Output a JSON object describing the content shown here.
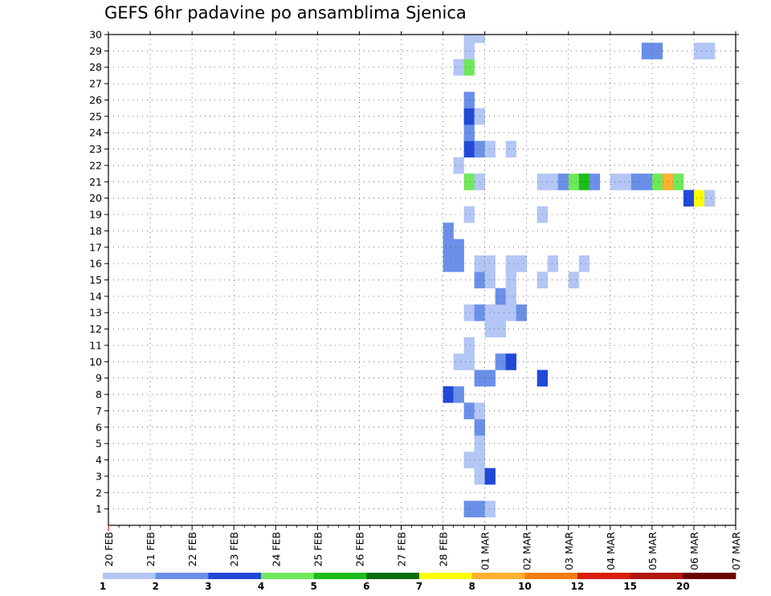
{
  "chart_data": {
    "type": "heatmap",
    "title": "GEFS 6hr padavine po ansamblima Sjenica",
    "y_label": "ensemble member",
    "y_ticks": [
      1,
      2,
      3,
      4,
      5,
      6,
      7,
      8,
      9,
      10,
      11,
      12,
      13,
      14,
      15,
      16,
      17,
      18,
      19,
      20,
      21,
      22,
      23,
      24,
      25,
      26,
      27,
      28,
      29,
      30
    ],
    "x_tick_labels": [
      "20 FEB",
      "21 FEB",
      "22 FEB",
      "23 FEB",
      "24 FEB",
      "25 FEB",
      "26 FEB",
      "27 FEB",
      "28 FEB",
      "01 MAR",
      "02 MAR",
      "03 MAR",
      "04 MAR",
      "05 MAR",
      "06 MAR",
      "07 MAR"
    ],
    "x_steps_per_day": 4,
    "color_scale": {
      "bin_colors": [
        "#b3c6f5",
        "#6b8fe9",
        "#2049d8",
        "#6fe85a",
        "#1bbd1b",
        "#0c6b0c",
        "#ffff00",
        "#ffb02e",
        "#f77d0f",
        "#d81e0a",
        "#b1170c",
        "#6b0303"
      ],
      "tick_labels": [
        "1",
        "2",
        "3",
        "4",
        "5",
        "6",
        "7",
        "8",
        "10",
        "12",
        "15",
        "20"
      ]
    },
    "members": {
      "30": [
        [
          34,
          0
        ],
        [
          35,
          0
        ],
        [
          142,
          2
        ],
        [
          143,
          11
        ],
        [
          144,
          1
        ],
        [
          145,
          0
        ],
        [
          146,
          1
        ],
        [
          147,
          0
        ]
      ],
      "29": [
        [
          34,
          0
        ],
        [
          51,
          1
        ],
        [
          52,
          1
        ],
        [
          56,
          0
        ],
        [
          57,
          0
        ]
      ],
      "28": [
        [
          33,
          0
        ],
        [
          34,
          3
        ],
        [
          144,
          0
        ],
        [
          145,
          3
        ],
        [
          146,
          1
        ],
        [
          147,
          3
        ]
      ],
      "27": [
        [
          76,
          0
        ],
        [
          77,
          4
        ],
        [
          78,
          2
        ],
        [
          120,
          2
        ],
        [
          126,
          0
        ],
        [
          144,
          4
        ],
        [
          145,
          0
        ]
      ],
      "26": [
        [
          34,
          1
        ],
        [
          120,
          0
        ],
        [
          126,
          1
        ]
      ],
      "25": [
        [
          34,
          2
        ],
        [
          35,
          0
        ],
        [
          89,
          3
        ],
        [
          90,
          0
        ],
        [
          92,
          1
        ],
        [
          93,
          0
        ],
        [
          94,
          0
        ]
      ],
      "24": [
        [
          34,
          1
        ],
        [
          82,
          0
        ],
        [
          85,
          5
        ],
        [
          86,
          1
        ],
        [
          115,
          0
        ],
        [
          116,
          2
        ],
        [
          117,
          2
        ],
        [
          118,
          1
        ],
        [
          120,
          3
        ],
        [
          121,
          5
        ],
        [
          122,
          3
        ],
        [
          123,
          1
        ],
        [
          124,
          0
        ],
        [
          145,
          0
        ]
      ],
      "23": [
        [
          34,
          2
        ],
        [
          35,
          1
        ],
        [
          36,
          0
        ],
        [
          38,
          0
        ],
        [
          85,
          2
        ],
        [
          86,
          0
        ],
        [
          141,
          4
        ]
      ],
      "22": [
        [
          33,
          0
        ],
        [
          85,
          0
        ]
      ],
      "21": [
        [
          34,
          3
        ],
        [
          35,
          0
        ],
        [
          41,
          0
        ],
        [
          42,
          0
        ],
        [
          43,
          1
        ],
        [
          44,
          3
        ],
        [
          45,
          4
        ],
        [
          46,
          1
        ],
        [
          48,
          0
        ],
        [
          49,
          0
        ],
        [
          50,
          1
        ],
        [
          51,
          1
        ],
        [
          52,
          3
        ],
        [
          53,
          7
        ],
        [
          54,
          3
        ],
        [
          113,
          6
        ],
        [
          114,
          5
        ],
        [
          115,
          0
        ],
        [
          116,
          0
        ],
        [
          118,
          0
        ],
        [
          119,
          0
        ],
        [
          120,
          0
        ],
        [
          121,
          0
        ],
        [
          125,
          0
        ]
      ],
      "20": [
        [
          55,
          2
        ],
        [
          56,
          6
        ],
        [
          57,
          0
        ],
        [
          82,
          0
        ],
        [
          123,
          0
        ]
      ],
      "19": [
        [
          34,
          0
        ],
        [
          41,
          0
        ],
        [
          80,
          2
        ],
        [
          81,
          3
        ],
        [
          82,
          1
        ],
        [
          83,
          2
        ],
        [
          84,
          0
        ]
      ],
      "18": [
        [
          32,
          1
        ],
        [
          79,
          2
        ],
        [
          80,
          8
        ],
        [
          81,
          3
        ],
        [
          82,
          0
        ],
        [
          83,
          0
        ],
        [
          85,
          2
        ],
        [
          86,
          0
        ],
        [
          127,
          0
        ],
        [
          128,
          0
        ]
      ],
      "17": [
        [
          32,
          1
        ],
        [
          33,
          1
        ],
        [
          82,
          0
        ],
        [
          83,
          0
        ],
        [
          130,
          0
        ]
      ],
      "16": [
        [
          32,
          1
        ],
        [
          33,
          1
        ],
        [
          35,
          0
        ],
        [
          36,
          0
        ],
        [
          38,
          0
        ],
        [
          39,
          0
        ],
        [
          42,
          0
        ],
        [
          45,
          0
        ],
        [
          85,
          3
        ],
        [
          86,
          1
        ],
        [
          87,
          2
        ],
        [
          111,
          1
        ],
        [
          112,
          9
        ],
        [
          113,
          5
        ],
        [
          114,
          1
        ],
        [
          115,
          2
        ],
        [
          116,
          0
        ]
      ],
      "15": [
        [
          35,
          1
        ],
        [
          36,
          0
        ],
        [
          38,
          0
        ],
        [
          41,
          0
        ],
        [
          44,
          0
        ],
        [
          110,
          1
        ],
        [
          111,
          9
        ],
        [
          112,
          5
        ],
        [
          113,
          1
        ],
        [
          114,
          2
        ],
        [
          115,
          0
        ],
        [
          126,
          0
        ],
        [
          147,
          3
        ]
      ],
      "14": [
        [
          37,
          1
        ],
        [
          38,
          0
        ],
        [
          146,
          2
        ],
        [
          147,
          3
        ]
      ],
      "13": [
        [
          34,
          0
        ],
        [
          35,
          1
        ],
        [
          36,
          0
        ],
        [
          37,
          0
        ],
        [
          38,
          0
        ],
        [
          39,
          1
        ],
        [
          113,
          0
        ],
        [
          125,
          0
        ],
        [
          126,
          0
        ]
      ],
      "12": [
        [
          36,
          0
        ],
        [
          37,
          0
        ],
        [
          91,
          1
        ],
        [
          125,
          1
        ],
        [
          146,
          8
        ],
        [
          147,
          4
        ]
      ],
      "11": [
        [
          34,
          0
        ],
        [
          76,
          1
        ],
        [
          121,
          0
        ],
        [
          128,
          7
        ],
        [
          129,
          6
        ],
        [
          130,
          3
        ],
        [
          131,
          0
        ],
        [
          132,
          1
        ],
        [
          133,
          1
        ],
        [
          134,
          0
        ]
      ],
      "10": [
        [
          33,
          0
        ],
        [
          34,
          0
        ],
        [
          37,
          1
        ],
        [
          38,
          2
        ],
        [
          85,
          1
        ],
        [
          86,
          5
        ],
        [
          125,
          1
        ],
        [
          126,
          4
        ],
        [
          127,
          6
        ],
        [
          128,
          0
        ],
        [
          129,
          0
        ]
      ],
      "9": [
        [
          35,
          1
        ],
        [
          36,
          1
        ],
        [
          41,
          2
        ],
        [
          76,
          0
        ],
        [
          85,
          0
        ]
      ],
      "8": [
        [
          32,
          2
        ],
        [
          33,
          1
        ],
        [
          121,
          0
        ],
        [
          122,
          8
        ],
        [
          123,
          1
        ],
        [
          143,
          7
        ],
        [
          144,
          2
        ]
      ],
      "7": [
        [
          34,
          1
        ],
        [
          35,
          0
        ],
        [
          84,
          2
        ],
        [
          87,
          0
        ],
        [
          121,
          2
        ],
        [
          122,
          3
        ],
        [
          123,
          0
        ]
      ],
      "6": [
        [
          35,
          1
        ],
        [
          120,
          4
        ]
      ],
      "5": [
        [
          35,
          0
        ],
        [
          85,
          7
        ],
        [
          121,
          2
        ],
        [
          124,
          0
        ],
        [
          125,
          2
        ]
      ],
      "4": [
        [
          34,
          0
        ],
        [
          35,
          0
        ],
        [
          84,
          1
        ],
        [
          85,
          4
        ],
        [
          101,
          2
        ],
        [
          142,
          2
        ],
        [
          143,
          4
        ],
        [
          144,
          0
        ]
      ],
      "3": [
        [
          35,
          0
        ],
        [
          36,
          2
        ],
        [
          95,
          4
        ],
        [
          116,
          0
        ],
        [
          124,
          0
        ]
      ],
      "2": [
        [
          85,
          0
        ],
        [
          140,
          0
        ],
        [
          142,
          1
        ]
      ],
      "1": [
        [
          34,
          1
        ],
        [
          35,
          1
        ],
        [
          36,
          0
        ],
        [
          92,
          1
        ],
        [
          93,
          0
        ],
        [
          111,
          0
        ],
        [
          114,
          1
        ],
        [
          115,
          2
        ],
        [
          116,
          0
        ]
      ],
      "0": [
        [
          74,
          0
        ],
        [
          85,
          4
        ],
        [
          86,
          4
        ],
        [
          87,
          1
        ],
        [
          115,
          0
        ],
        [
          116,
          0
        ]
      ]
    }
  }
}
